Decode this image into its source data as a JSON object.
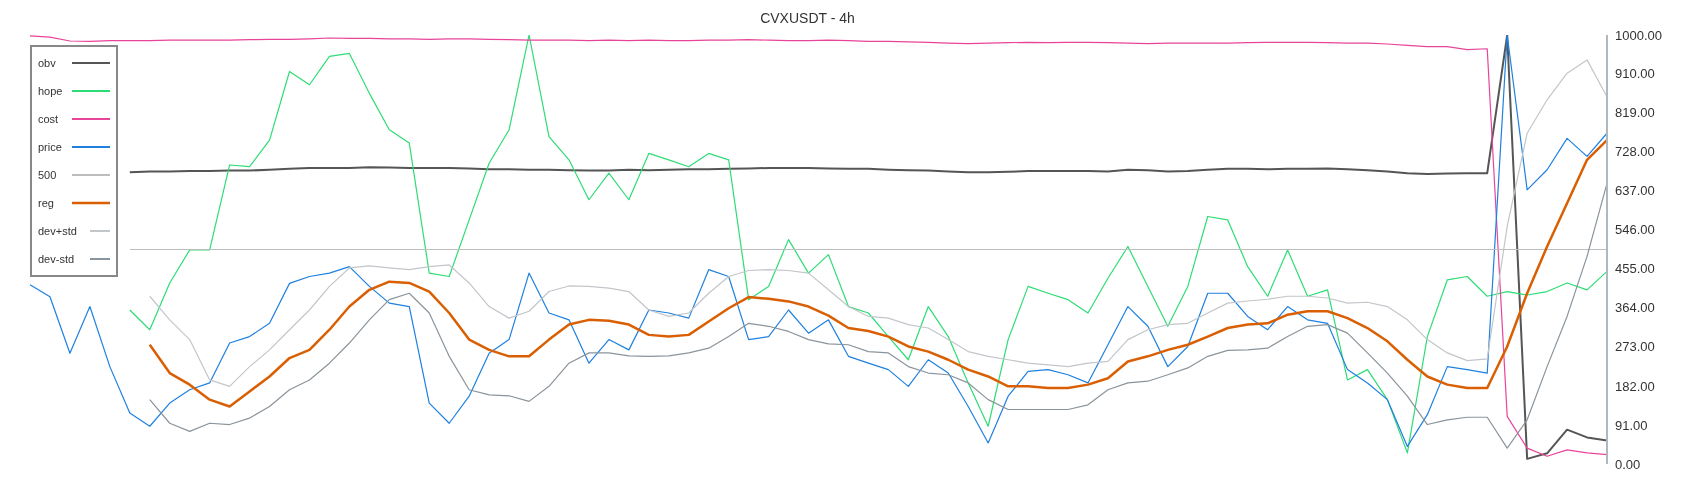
{
  "chart_data": {
    "type": "line",
    "title": "CVXUSDT - 4h",
    "categories": [
      null,
      null,
      null,
      null,
      null,
      null,
      null,
      null,
      null,
      null,
      null,
      null,
      null,
      null,
      null,
      null,
      null,
      null,
      null,
      null,
      null,
      null,
      null,
      null,
      null,
      null,
      null,
      null,
      null,
      null,
      null,
      null,
      null,
      null,
      null,
      null,
      null,
      null,
      null,
      null,
      null,
      null,
      null,
      null,
      null,
      null,
      null,
      null,
      null,
      null,
      null,
      null,
      null,
      null,
      null,
      null,
      null,
      null,
      null,
      null,
      null,
      null,
      null,
      null,
      null,
      null,
      null,
      null,
      null,
      null,
      null,
      null,
      null,
      null,
      null,
      null,
      null,
      null,
      null,
      null
    ],
    "ylim": [
      0,
      1000
    ],
    "yticks": [
      {
        "value": 0,
        "label": "0.00"
      },
      {
        "value": 91,
        "label": "91.00"
      },
      {
        "value": 182,
        "label": "182.00"
      },
      {
        "value": 273,
        "label": "273.00"
      },
      {
        "value": 364,
        "label": "364.00"
      },
      {
        "value": 455,
        "label": "455.00"
      },
      {
        "value": 546,
        "label": "546.00"
      },
      {
        "value": 637,
        "label": "637.00"
      },
      {
        "value": 728,
        "label": "728.00"
      },
      {
        "value": 819,
        "label": "819.00"
      },
      {
        "value": 910,
        "label": "910.00"
      },
      {
        "value": 1000,
        "label": "1000.00"
      }
    ],
    "tick_labels": "y",
    "grid": false,
    "legend": "top left",
    "marker": "none",
    "series": [
      {
        "name": "obv",
        "color": "#555555",
        "values": [
          null,
          null,
          null,
          null,
          null,
          680,
          682,
          682,
          683,
          683,
          684,
          684,
          686,
          688,
          690,
          690,
          690,
          692,
          691,
          690,
          690,
          690,
          689,
          687,
          687,
          686,
          686,
          685,
          684,
          684,
          686,
          685,
          686,
          687,
          687,
          688,
          689,
          690,
          690,
          690,
          689,
          688,
          688,
          686,
          685,
          684,
          682,
          680,
          680,
          681,
          683,
          683,
          683,
          683,
          682,
          686,
          685,
          682,
          683,
          686,
          688,
          688,
          687,
          688,
          688,
          689,
          687,
          685,
          682,
          678,
          676,
          677,
          678,
          678,
          1000,
          12,
          25,
          80,
          62,
          55
        ]
      },
      {
        "name": "hope",
        "color": "#2edc76",
        "values": [
          null,
          null,
          null,
          null,
          null,
          359,
          313,
          422,
          499,
          499,
          697,
          693,
          755,
          915,
          884,
          950,
          957,
          864,
          779,
          748,
          445,
          437,
          569,
          701,
          779,
          1000,
          763,
          709,
          616,
          678,
          616,
          724,
          709,
          693,
          724,
          709,
          383,
          414,
          523,
          445,
          488,
          367,
          352,
          297,
          243,
          367,
          297,
          189,
          88,
          290,
          414,
          398,
          383,
          352,
          433,
          507,
          414,
          321,
          414,
          577,
          569,
          460,
          391,
          499,
          391,
          406,
          196,
          220,
          150,
          26,
          297,
          429,
          437,
          391,
          402,
          394,
          402,
          422,
          406,
          449
        ]
      },
      {
        "name": "cost",
        "color": "#e8449a",
        "values": [
          998,
          995,
          986,
          985,
          987,
          987,
          987,
          988,
          988,
          988,
          988,
          989,
          990,
          990,
          991,
          993,
          992,
          992,
          991,
          991,
          990,
          991,
          991,
          990,
          989,
          988,
          988,
          988,
          987,
          988,
          987,
          988,
          987,
          987,
          988,
          988,
          989,
          988,
          987,
          987,
          988,
          987,
          985,
          985,
          984,
          983,
          981,
          980,
          981,
          982,
          983,
          982,
          983,
          983,
          982,
          981,
          980,
          981,
          981,
          981,
          981,
          982,
          983,
          983,
          983,
          982,
          981,
          981,
          979,
          976,
          973,
          973,
          966,
          968,
          111,
          37,
          18,
          33,
          26,
          22
        ]
      },
      {
        "name": "price",
        "color": "#1f80e0",
        "values": [
          418,
          390,
          258,
          367,
          227,
          119,
          88,
          142,
          173,
          189,
          282,
          297,
          328,
          421,
          437,
          445,
          460,
          414,
          375,
          367,
          142,
          95,
          158,
          258,
          290,
          445,
          352,
          336,
          235,
          290,
          266,
          359,
          352,
          340,
          453,
          437,
          290,
          297,
          359,
          305,
          336,
          251,
          235,
          220,
          181,
          243,
          212,
          134,
          49,
          158,
          216,
          220,
          208,
          189,
          278,
          367,
          321,
          227,
          274,
          398,
          398,
          344,
          313,
          367,
          336,
          328,
          220,
          189,
          150,
          41,
          115,
          227,
          220,
          212,
          1000,
          639,
          686,
          759,
          717,
          771
        ]
      },
      {
        "name": "500",
        "color": "#bdbdbd",
        "values": [
          null,
          null,
          null,
          null,
          null,
          500,
          500,
          500,
          500,
          500,
          500,
          500,
          500,
          500,
          500,
          500,
          500,
          500,
          500,
          500,
          500,
          500,
          500,
          500,
          500,
          500,
          500,
          500,
          500,
          500,
          500,
          500,
          500,
          500,
          500,
          500,
          500,
          500,
          500,
          500,
          500,
          500,
          500,
          500,
          500,
          500,
          500,
          500,
          500,
          500,
          500,
          500,
          500,
          500,
          500,
          500,
          500,
          500,
          500,
          500,
          500,
          500,
          500,
          500,
          500,
          500,
          500,
          500,
          500,
          500,
          500,
          500,
          500,
          500,
          500,
          500,
          500,
          500,
          500,
          500
        ]
      },
      {
        "name": "reg",
        "color": "#d95f02",
        "values": [
          null,
          null,
          null,
          null,
          null,
          null,
          278,
          212,
          185,
          150,
          134,
          169,
          204,
          247,
          266,
          313,
          367,
          406,
          425,
          422,
          402,
          352,
          290,
          266,
          251,
          251,
          290,
          325,
          336,
          334,
          325,
          301,
          297,
          301,
          332,
          363,
          389,
          385,
          379,
          367,
          346,
          317,
          310,
          297,
          274,
          262,
          243,
          220,
          204,
          181,
          181,
          177,
          177,
          185,
          200,
          239,
          251,
          266,
          278,
          297,
          317,
          325,
          328,
          348,
          356,
          356,
          340,
          317,
          286,
          243,
          204,
          185,
          177,
          177,
          274,
          398,
          507,
          608,
          709,
          755
        ]
      },
      {
        "name": "dev+std",
        "color": "#c2c6ca",
        "values": [
          null,
          null,
          null,
          null,
          null,
          null,
          391,
          336,
          290,
          196,
          181,
          227,
          266,
          313,
          359,
          414,
          457,
          462,
          457,
          453,
          460,
          464,
          422,
          367,
          340,
          356,
          402,
          415,
          414,
          410,
          402,
          359,
          344,
          352,
          398,
          437,
          451,
          453,
          451,
          445,
          406,
          367,
          344,
          340,
          325,
          317,
          290,
          262,
          251,
          243,
          235,
          231,
          227,
          235,
          239,
          290,
          313,
          325,
          328,
          352,
          375,
          380,
          384,
          391,
          391,
          387,
          375,
          377,
          367,
          336,
          290,
          259,
          241,
          245,
          554,
          771,
          849,
          911,
          942,
          856
        ]
      },
      {
        "name": "dev-std",
        "color": "#8a949c",
        "values": [
          null,
          null,
          null,
          null,
          null,
          null,
          150,
          95,
          76,
          95,
          92,
          107,
          134,
          173,
          196,
          235,
          282,
          336,
          383,
          398,
          352,
          251,
          173,
          161,
          159,
          146,
          181,
          235,
          259,
          259,
          252,
          251,
          252,
          259,
          270,
          297,
          328,
          321,
          309,
          290,
          280,
          278,
          262,
          259,
          227,
          212,
          208,
          189,
          150,
          127,
          127,
          127,
          127,
          138,
          173,
          189,
          193,
          208,
          224,
          251,
          265,
          266,
          270,
          297,
          321,
          325,
          305,
          259,
          212,
          158,
          92,
          103,
          109,
          109,
          37,
          103,
          227,
          344,
          484,
          654
        ]
      }
    ]
  }
}
